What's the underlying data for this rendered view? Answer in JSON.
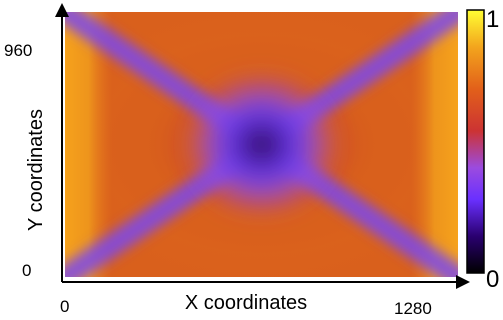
{
  "chart_data": {
    "type": "heatmap",
    "title": "",
    "xlabel": "X coordinates",
    "ylabel": "Y coordinates",
    "xlim": [
      0,
      1280
    ],
    "ylim": [
      0,
      960
    ],
    "x_ticks": [
      "0",
      "1280"
    ],
    "y_ticks": [
      "0",
      "960"
    ],
    "colorbar": {
      "range": [
        0,
        1
      ],
      "tick_labels": [
        "0",
        "1"
      ],
      "colormap": [
        "#000000",
        "#2a0070",
        "#6a30ff",
        "#9b4bdf",
        "#cc3333",
        "#e2601a",
        "#f3a51d",
        "#ffff33"
      ]
    },
    "pattern": "Radial field with minimum (~0) at the centre (x≈640, y≈480) and dark violet diagonal bands running toward the four corners; surrounding area orange-red (~0.5–0.6), brightest yellow-orange (~0.8) near the left and right edges.",
    "min_location": {
      "x": 640,
      "y": 480,
      "value": 0.0
    },
    "colors": {
      "minimum": "#1a0020",
      "diagonal_band": "#7a48f0",
      "background": "#d9601c",
      "edge_bright": "#f5a51c"
    }
  }
}
